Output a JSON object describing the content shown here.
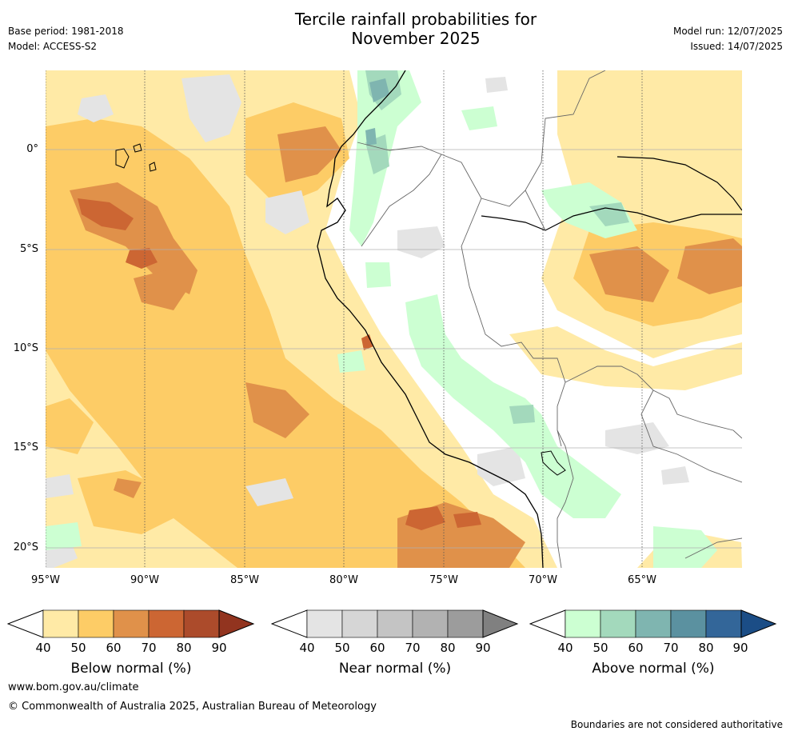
{
  "header": {
    "title_line1": "Tercile rainfall probabilities for",
    "title_line2": "November 2025",
    "base_period": "Base period: 1981-2018",
    "model": "Model: ACCESS-S2",
    "model_run": "Model run: 12/07/2025",
    "issued": "Issued: 14/07/2025"
  },
  "map": {
    "lat_labels": [
      "0°",
      "5°S",
      "10°S",
      "15°S",
      "20°S"
    ],
    "lon_labels": [
      "95°W",
      "90°W",
      "85°W",
      "80°W",
      "75°W",
      "70°W",
      "65°W"
    ],
    "colors": {
      "below": [
        "#ffeaa6",
        "#fdcc66",
        "#e0914a",
        "#cc6633",
        "#ac4b2b",
        "#92341f"
      ],
      "near": [
        "#e4e4e4",
        "#d6d6d6",
        "#c4c4c4",
        "#b2b2b2",
        "#9c9c9c",
        "#808080"
      ],
      "above": [
        "#ccffd2",
        "#a3d9bc",
        "#7fb5b0",
        "#5b91a0",
        "#336699",
        "#1b4d86"
      ]
    }
  },
  "colorbars": [
    {
      "id": "below",
      "title": "Below normal (%)",
      "ticks": [
        "40",
        "50",
        "60",
        "70",
        "80",
        "90"
      ]
    },
    {
      "id": "near",
      "title": "Near normal (%)",
      "ticks": [
        "40",
        "50",
        "60",
        "70",
        "80",
        "90"
      ]
    },
    {
      "id": "above",
      "title": "Above normal (%)",
      "ticks": [
        "40",
        "50",
        "60",
        "70",
        "80",
        "90"
      ]
    }
  ],
  "footer": {
    "url": "www.bom.gov.au/climate",
    "copyright": "© Commonwealth of Australia 2025, Australian Bureau of Meteorology",
    "disclaimer": "Boundaries are not considered authoritative"
  }
}
